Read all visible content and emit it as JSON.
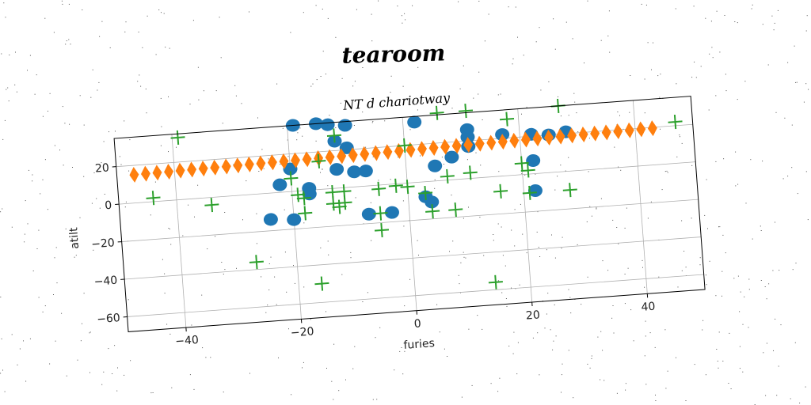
{
  "suptitle": "tearoom",
  "chart_data": {
    "type": "scatter",
    "title": "NT d chariotway",
    "xlabel": "furies",
    "ylabel": "atilt",
    "xlim": [
      -50,
      50
    ],
    "ylim": [
      -68,
      35
    ],
    "grid": true,
    "x_ticks": [
      -40,
      -20,
      0,
      20,
      40
    ],
    "y_ticks": [
      -60,
      -40,
      -20,
      0,
      20
    ],
    "colors": {
      "series_a": "#1f77b4",
      "series_b": "#ff7f0e",
      "series_c": "#2ca02c"
    },
    "series": [
      {
        "marker": "circle",
        "points": [
          [
            -19,
            35
          ],
          [
            -15,
            35
          ],
          [
            -13,
            34
          ],
          [
            -10,
            33
          ],
          [
            -12,
            25
          ],
          [
            -10,
            21
          ],
          [
            -20,
            12
          ],
          [
            -12,
            10
          ],
          [
            -9,
            8
          ],
          [
            -7,
            8
          ],
          [
            -22,
            4
          ],
          [
            -17,
            1
          ],
          [
            -17,
            -2
          ],
          [
            -24,
            -14
          ],
          [
            -20,
            -15
          ],
          [
            -7,
            -15
          ],
          [
            -3,
            -15
          ],
          [
            3,
            -8
          ],
          [
            4,
            -11
          ],
          [
            2,
            32
          ],
          [
            5,
            8
          ],
          [
            8,
            12
          ],
          [
            11,
            26
          ],
          [
            11,
            22
          ],
          [
            11,
            17
          ],
          [
            17,
            22
          ],
          [
            22,
            21
          ],
          [
            25,
            20
          ],
          [
            28,
            21
          ],
          [
            22,
            7
          ],
          [
            22,
            -9
          ]
        ]
      },
      {
        "marker": "diamond",
        "points": [
          [
            -47,
            15
          ],
          [
            -45,
            15.1
          ],
          [
            -43,
            15.2
          ],
          [
            -41,
            15.3
          ],
          [
            -39,
            15.4
          ],
          [
            -37,
            15.5
          ],
          [
            -35,
            15.6
          ],
          [
            -33,
            15.7
          ],
          [
            -31,
            15.8
          ],
          [
            -29,
            15.9
          ],
          [
            -27,
            16
          ],
          [
            -25,
            16.1
          ],
          [
            -23,
            16.2
          ],
          [
            -21,
            16.3
          ],
          [
            -19,
            16.4
          ],
          [
            -17,
            16.5
          ],
          [
            -15,
            16.6
          ],
          [
            -13,
            16.7
          ],
          [
            -11,
            16.8
          ],
          [
            -9,
            16.9
          ],
          [
            -7,
            17
          ],
          [
            -5,
            17.1
          ],
          [
            -3,
            17.2
          ],
          [
            -1,
            17.3
          ],
          [
            1,
            17.4
          ],
          [
            3,
            17.5
          ],
          [
            5,
            17.6
          ],
          [
            7,
            17.7
          ],
          [
            9,
            17.8
          ],
          [
            11,
            17.9
          ],
          [
            13,
            18
          ],
          [
            15,
            18.1
          ],
          [
            17,
            18.2
          ],
          [
            19,
            18.3
          ],
          [
            21,
            18.4
          ],
          [
            23,
            18.5
          ],
          [
            25,
            18.6
          ],
          [
            27,
            18.7
          ],
          [
            29,
            18.8
          ],
          [
            31,
            18.9
          ],
          [
            33,
            19
          ],
          [
            35,
            19.1
          ],
          [
            37,
            19.2
          ],
          [
            39,
            19.3
          ],
          [
            41,
            19.4
          ],
          [
            43,
            19.5
          ]
        ]
      },
      {
        "marker": "plus",
        "points": [
          [
            -39,
            33
          ],
          [
            -44,
            2
          ],
          [
            -34,
            -4
          ],
          [
            -27,
            -36
          ],
          [
            -16,
            -50
          ],
          [
            -20,
            7
          ],
          [
            -19,
            -2
          ],
          [
            -18,
            -4
          ],
          [
            -18,
            -12
          ],
          [
            -15,
            15
          ],
          [
            -13,
            -8
          ],
          [
            -13,
            -2
          ],
          [
            -12,
            -10
          ],
          [
            -12,
            28
          ],
          [
            -11,
            -2
          ],
          [
            -11,
            -8
          ],
          [
            -5,
            -2
          ],
          [
            -5,
            -24
          ],
          [
            -5,
            -15
          ],
          [
            -2,
            -1
          ],
          [
            0,
            -2
          ],
          [
            0,
            20
          ],
          [
            4,
            -16
          ],
          [
            3,
            -6
          ],
          [
            6,
            36
          ],
          [
            7,
            2
          ],
          [
            8,
            -16
          ],
          [
            11,
            36
          ],
          [
            11,
            3
          ],
          [
            14,
            -56
          ],
          [
            16,
            -8
          ],
          [
            18,
            30
          ],
          [
            20,
            6
          ],
          [
            21,
            -10
          ],
          [
            21,
            2
          ],
          [
            27,
            35
          ],
          [
            28,
            -10
          ],
          [
            47,
            22
          ]
        ]
      }
    ]
  }
}
